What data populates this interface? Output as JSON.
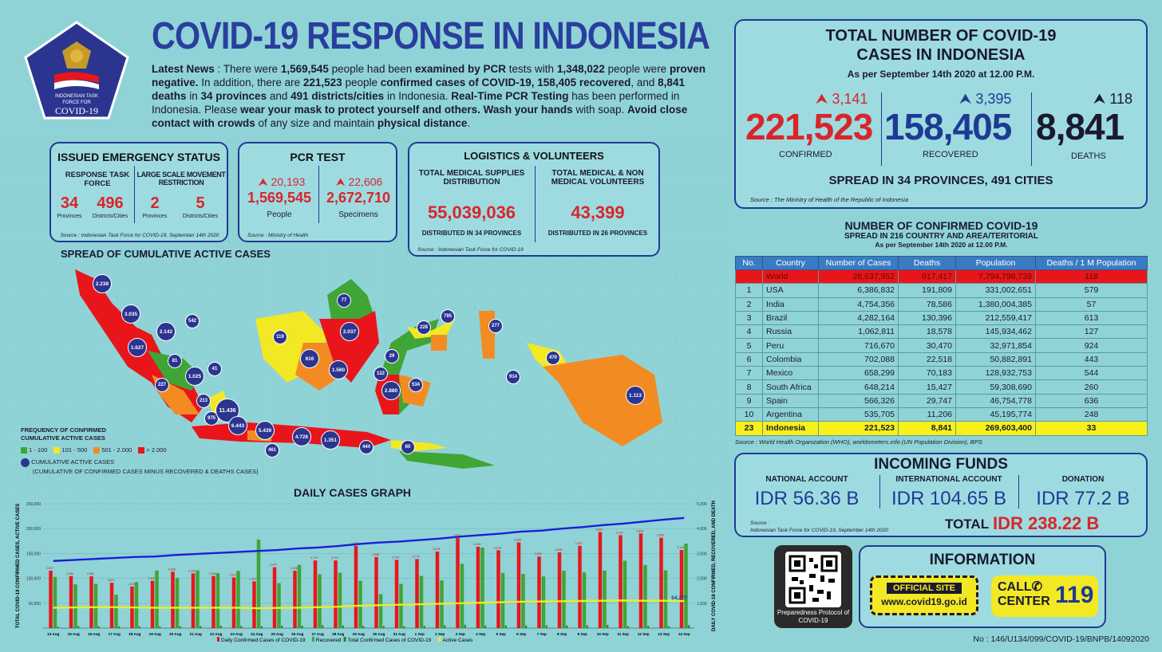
{
  "header": {
    "title": "COVID-19 RESPONSE IN INDONESIA",
    "logo_text_1": "INDONESIAN TASK",
    "logo_text_2": "FORCE FOR",
    "logo_text_3": "COVID-19"
  },
  "news": {
    "p1": "Latest News",
    "p2": " : There were ",
    "p3": "1,569,545",
    "p4": " people had been ",
    "p5": "examined by PCR",
    "p6": " tests with ",
    "p7": "1,348,022",
    "p8": " people were ",
    "p9": "proven negative.",
    "p10": " In addition, there are ",
    "p11": "221,523",
    "p12": " people ",
    "p13": "confirmed cases of COVID-19, 158,405 recovered",
    "p14": ", and ",
    "p15": "8,841 deaths",
    "p16": " in ",
    "p17": "34 provinces",
    "p18": " and ",
    "p19": "491 districts/cities",
    "p20": " in Indonesia. ",
    "p21": "Real-Time PCR Testing",
    "p22": " has been performed in Indonesia. Please ",
    "p23": "wear your mask to protect yourself and others. Wash your hands",
    "p24": " with soap. ",
    "p25": "Avoid close contact with crowds",
    "p26": " of any size and maintain ",
    "p27": "physical distance",
    "p28": "."
  },
  "emergency": {
    "title": "ISSUED EMERGENCY STATUS",
    "col1": "RESPONSE TASK FORCE",
    "col2": "LARGE SCALE MOVEMENT RESTRICTION",
    "n1": "34",
    "l1": "Provinces",
    "n2": "496",
    "l2": "Districts/Cities",
    "n3": "2",
    "l3": "Provinces",
    "n4": "5",
    "l4": "Districts/Cities",
    "source": "Source : Indonesian Task Force for COVID-19, September 14th 2020"
  },
  "pcr": {
    "title": "PCR TEST",
    "inc1": "20,193",
    "val1": "1,569,545",
    "lab1": "People",
    "inc2": "22,606",
    "val2": "2,672,710",
    "lab2": "Specimens",
    "source": "Source : Ministry of Health"
  },
  "logistics": {
    "title": "LOGISTICS & VOLUNTEERS",
    "h1": "TOTAL MEDICAL SUPPLIES DISTRIBUTION",
    "v1": "55,039,036",
    "f1": "DISTRIBUTED IN 34 PROVINCES",
    "h2": "TOTAL MEDICAL & NON MEDICAL VOLUNTEERS",
    "v2": "43,399",
    "f2": "DISTRIBUTED IN 26 PROVINCES",
    "source": "Source : Indonesian Task Force for COVID-19"
  },
  "totals": {
    "title1": "TOTAL NUMBER OF COVID-19",
    "title2": "CASES IN INDONESIA",
    "asof": "As per September 14th 2020 at 12.00 P.M.",
    "conf_inc": "3,141",
    "conf": "221,523",
    "conf_lab": "CONFIRMED",
    "rec_inc": "3,395",
    "rec": "158,405",
    "rec_lab": "RECOVERED",
    "death_inc": "118",
    "death": "8,841",
    "death_lab": "DEATHS",
    "spread": "SPREAD IN 34 PROVINCES, 491 CITIES",
    "source": "Source : The Ministry of Health of the Republic of Indonesia"
  },
  "world": {
    "t1": "NUMBER OF CONFIRMED COVID-19",
    "t2": "SPREAD IN 216 COUNTRY AND AREA/TERITORIAL",
    "t3": "As per September 14th 2020 at 12.00 P.M.",
    "headers": [
      "No.",
      "Country",
      "Number of Cases",
      "Deaths",
      "Population",
      "Deaths / 1 M Population"
    ],
    "rows": [
      [
        "",
        "World",
        "28,637,952",
        "917,417",
        "7,794,798,739",
        "118"
      ],
      [
        "1",
        "USA",
        "6,386,832",
        "191,809",
        "331,002,651",
        "579"
      ],
      [
        "2",
        "India",
        "4,754,356",
        "78,586",
        "1,380,004,385",
        "57"
      ],
      [
        "3",
        "Brazil",
        "4,282,164",
        "130,396",
        "212,559,417",
        "613"
      ],
      [
        "4",
        "Russia",
        "1,062,811",
        "18,578",
        "145,934,462",
        "127"
      ],
      [
        "5",
        "Peru",
        "716,670",
        "30,470",
        "32,971,854",
        "924"
      ],
      [
        "6",
        "Colombia",
        "702,088",
        "22,518",
        "50,882,891",
        "443"
      ],
      [
        "7",
        "Mexico",
        "658,299",
        "70,183",
        "128,932,753",
        "544"
      ],
      [
        "8",
        "South Africa",
        "648,214",
        "15,427",
        "59,308,690",
        "260"
      ],
      [
        "9",
        "Spain",
        "566,326",
        "29,747",
        "46,754,778",
        "636"
      ],
      [
        "10",
        "Argentina",
        "535,705",
        "11,206",
        "45,195,774",
        "248"
      ],
      [
        "23",
        "Indonesia",
        "221,523",
        "8,841",
        "269,603,400",
        "33"
      ]
    ],
    "source": "Source : World Health Organization (WHO), worldometers.info (UN Population Division), BPS"
  },
  "funds": {
    "title": "INCOMING FUNDS",
    "l1": "NATIONAL ACCOUNT",
    "v1": "IDR 56.36 B",
    "l2": "INTERNATIONAL ACCOUNT",
    "v2": "IDR 104.65 B",
    "l3": "DONATION",
    "v3": "IDR 77.2 B",
    "source1": "Source :",
    "source2": "Indonesian Task Force for COVID-19, September 14th 2020",
    "total_label": "TOTAL",
    "total_val": "IDR 238.22 B"
  },
  "info": {
    "qr_label": "Preparedness Protocol of COVID-19",
    "title": "INFORMATION",
    "official": "OFFICIAL SITE",
    "url": "www.covid19.go.id",
    "call1": "CALL",
    "call2": "CENTER",
    "call_num": "119",
    "doc_no": "No : 146/U134/099/COVID-19/BNPB/14092020"
  },
  "map": {
    "title": "SPREAD OF CUMULATIVE ACTIVE CASES",
    "legend_title1": "FREQUENCY OF CONFIRMED",
    "legend_title2": "CUMULATIVE ACTIVE CASES",
    "legend": [
      {
        "label": "1 - 100",
        "color": "#3fa535"
      },
      {
        "label": "101 - 500",
        "color": "#f2e824"
      },
      {
        "label": "501 - 2.000",
        "color": "#f28c22"
      },
      {
        "label": "> 2.000",
        "color": "#e8161b"
      }
    ],
    "circle_label1": "CUMULATIVE ACTIVE CASES",
    "circle_label2": "(CUMULATIVE OF CONFIRMED CASES MINUS RECOVERED & DEATHS CASES)",
    "bubbles": [
      "2.238",
      "3.035",
      "2.142",
      "542",
      "1.627",
      "81",
      "41",
      "1.025",
      "227",
      "213",
      "975",
      "11.436",
      "6.443",
      "5.439",
      "461",
      "4.726",
      "1.351",
      "444",
      "119",
      "616",
      "77",
      "2.037",
      "1.560",
      "29",
      "122",
      "2.880",
      "534",
      "228",
      "795",
      "60",
      "277",
      "470",
      "914",
      "1.113"
    ]
  },
  "chart_data": {
    "type": "bar",
    "title": "DAILY CASES GRAPH",
    "ylabel": "TOTAL COVID-19 CONFIRMED CASES, ACTIVE CASES",
    "y2label": "DAILY COVID-19 CONFIRMED, RECOVERED, AND DEATH",
    "ylim": [
      0,
      250000
    ],
    "y2lim": [
      0,
      5000
    ],
    "yticks": [
      "250,000",
      "200,000",
      "150,000",
      "100,000",
      "50,000"
    ],
    "y2ticks": [
      "5,000",
      "4,000",
      "3,000",
      "2,000",
      "1,000"
    ],
    "categories": [
      "14 Aug",
      "15 Aug",
      "16 Aug",
      "17 Aug",
      "18 Aug",
      "19 Aug",
      "20 Aug",
      "21 Aug",
      "22 Aug",
      "23 Aug",
      "24 Aug",
      "25 Aug",
      "26 Aug",
      "27 Aug",
      "28 Aug",
      "29 Aug",
      "30 Aug",
      "31 Aug",
      "1 Sep",
      "2 Sep",
      "3 Sep",
      "4 Sep",
      "5 Sep",
      "6 Sep",
      "7 Sep",
      "8 Sep",
      "9 Sep",
      "10 Sep",
      "11 Sep",
      "12 Sep",
      "13 Sep",
      "14 Sep"
    ],
    "series": [
      {
        "name": "Daily Confirmed Cases of COVID-19",
        "color": "#e8161b",
        "values": [
          2307,
          2090,
          2081,
          1821,
          1673,
          1902,
          2266,
          2197,
          2090,
          2037,
          1877,
          2447,
          2306,
          2719,
          2719,
          3308,
          2858,
          2743,
          2775,
          3075,
          3622,
          3269,
          3128,
          3444,
          2880,
          3046,
          3307,
          3861,
          3737,
          3806,
          3636,
          3141
        ]
      },
      {
        "name": "Recovered",
        "color": "#3fa535",
        "values": [
          2060,
          1760,
          1782,
          1343,
          1848,
          2311,
          2017,
          2317,
          2207,
          2302,
          3560,
          1807,
          2542,
          2166,
          2225,
          1902,
          1363,
          1776,
          2098,
          1916,
          2584,
          3236,
          2220,
          2174,
          2077,
          2306,
          2242,
          2310,
          2707,
          2541,
          2322,
          3395
        ]
      },
      {
        "name": "Deaths",
        "color": "#2d7a2a",
        "values": [
          53,
          79,
          70,
          67,
          70,
          69,
          72,
          82,
          94,
          86,
          79,
          95,
          96,
          120,
          105,
          92,
          82,
          74,
          88,
          111,
          134,
          108,
          108,
          106,
          106,
          109,
          110,
          130,
          80,
          92,
          73,
          118
        ]
      },
      {
        "name": "Total Confirmed Cases of COVID-19",
        "color": "#1d1dd6",
        "values": [
          135000,
          137000,
          139000,
          141000,
          143000,
          144000,
          147000,
          149000,
          151000,
          153000,
          155000,
          157000,
          160000,
          162000,
          165000,
          169000,
          172000,
          174000,
          177000,
          180000,
          184000,
          187000,
          190000,
          194000,
          196000,
          200000,
          203000,
          207000,
          210000,
          214000,
          218000,
          221523
        ]
      },
      {
        "name": "Active Cases",
        "color": "#f2ea27",
        "values": [
          41000,
          41500,
          42000,
          42000,
          41500,
          41000,
          41000,
          41000,
          41000,
          41000,
          40000,
          40500,
          41000,
          42000,
          43000,
          45000,
          46000,
          47000,
          48000,
          49000,
          50000,
          51000,
          52000,
          53000,
          53500,
          54000,
          54500,
          55000,
          55500,
          55000,
          55000,
          54277
        ]
      }
    ],
    "bar_labels": [
      "2,307",
      "2,090",
      "2,081",
      "1,821",
      "1,673",
      "1,902",
      "2,266",
      "2,197",
      "2,090",
      "2,037",
      "1,877",
      "2,447",
      "2,306",
      "2,719",
      "2,719",
      "3,308",
      "2,858",
      "2,743",
      "2,775",
      "3,075",
      "3,622",
      "3,269",
      "3,128",
      "3,444",
      "2,880",
      "3,046",
      "3,307",
      "3,861",
      "3,737",
      "3,806",
      "3,636",
      "3,141"
    ],
    "annotation": "54,277",
    "legend": [
      "Daily Confirmed Cases of COVID-19",
      "Recovered",
      "Total Confirmed Cases of COVID-19",
      "Active Cases"
    ]
  }
}
